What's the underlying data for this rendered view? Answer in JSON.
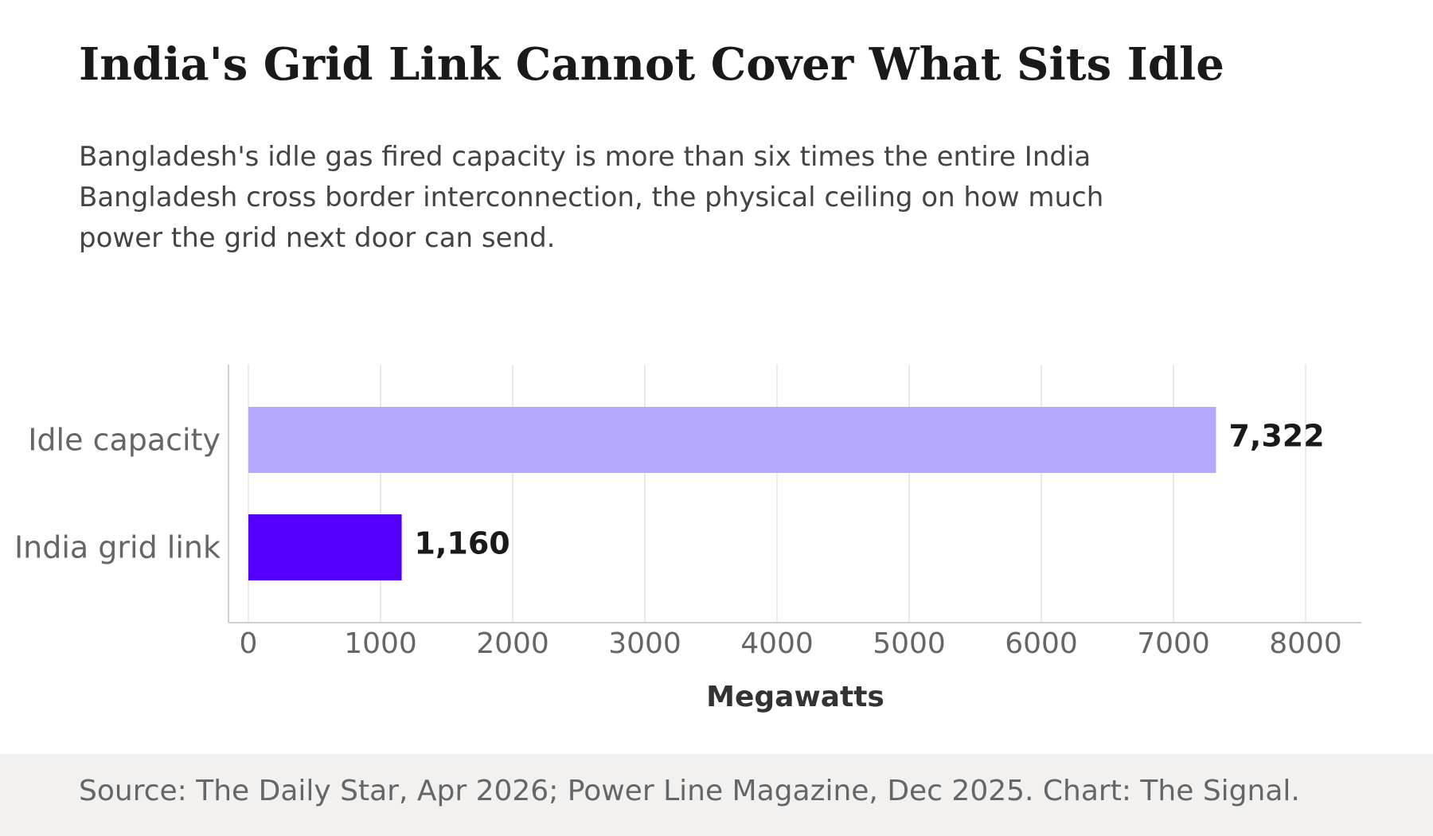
{
  "title": "India's Grid Link Cannot Cover What Sits Idle",
  "subtitle": "Bangladesh's idle gas fired capacity is more than six times the entire India Bangladesh cross border interconnection, the physical ceiling on how much power the grid next door can send.",
  "source": "Source: The Daily Star, Apr 2026; Power Line Magazine, Dec 2025. Chart: The Signal.",
  "chart_data": {
    "type": "bar",
    "orientation": "horizontal",
    "categories": [
      "Idle capacity",
      "India grid link"
    ],
    "values": [
      7322,
      1160
    ],
    "value_labels": [
      "7,322",
      "1,160"
    ],
    "colors": [
      "#b5a8ff",
      "#5500ff"
    ],
    "xlabel": "Megawatts",
    "ylabel": "",
    "xlim": [
      0,
      8400
    ],
    "xticks": [
      0,
      1000,
      2000,
      3000,
      4000,
      5000,
      6000,
      7000,
      8000
    ],
    "grid": "vertical"
  }
}
